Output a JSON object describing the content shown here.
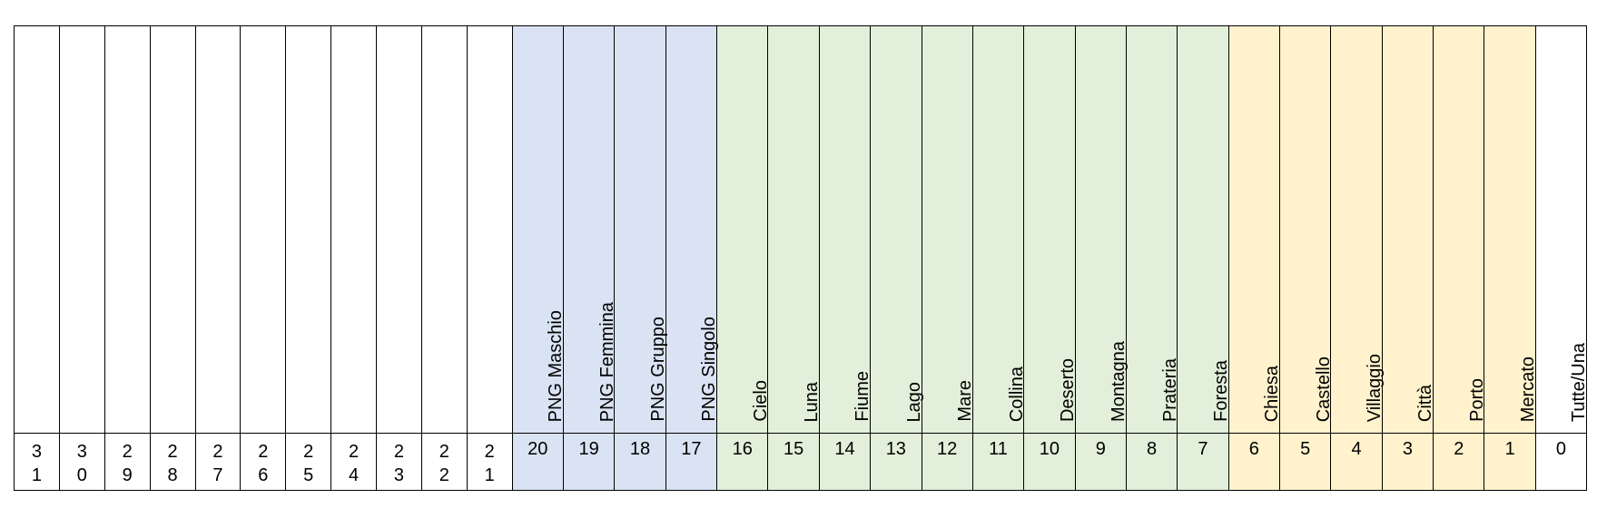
{
  "columns": [
    {
      "number": "31",
      "label": "",
      "color": "white"
    },
    {
      "number": "30",
      "label": "",
      "color": "white"
    },
    {
      "number": "29",
      "label": "",
      "color": "white"
    },
    {
      "number": "28",
      "label": "",
      "color": "white"
    },
    {
      "number": "27",
      "label": "",
      "color": "white"
    },
    {
      "number": "26",
      "label": "",
      "color": "white"
    },
    {
      "number": "25",
      "label": "",
      "color": "white"
    },
    {
      "number": "24",
      "label": "",
      "color": "white"
    },
    {
      "number": "23",
      "label": "",
      "color": "white"
    },
    {
      "number": "22",
      "label": "",
      "color": "white"
    },
    {
      "number": "21",
      "label": "",
      "color": "white"
    },
    {
      "number": "20",
      "label": "PNG Maschio",
      "color": "blue"
    },
    {
      "number": "19",
      "label": "PNG Femmina",
      "color": "blue"
    },
    {
      "number": "18",
      "label": "PNG Gruppo",
      "color": "blue"
    },
    {
      "number": "17",
      "label": "PNG Singolo",
      "color": "blue"
    },
    {
      "number": "16",
      "label": "Cielo",
      "color": "green"
    },
    {
      "number": "15",
      "label": "Luna",
      "color": "green"
    },
    {
      "number": "14",
      "label": "Fiume",
      "color": "green"
    },
    {
      "number": "13",
      "label": "Lago",
      "color": "green"
    },
    {
      "number": "12",
      "label": "Mare",
      "color": "green"
    },
    {
      "number": "11",
      "label": "Collina",
      "color": "green"
    },
    {
      "number": "10",
      "label": "Deserto",
      "color": "green"
    },
    {
      "number": "9",
      "label": "Montagna",
      "color": "green"
    },
    {
      "number": "8",
      "label": "Prateria",
      "color": "green"
    },
    {
      "number": "7",
      "label": "Foresta",
      "color": "green"
    },
    {
      "number": "6",
      "label": "Chiesa",
      "color": "yellow"
    },
    {
      "number": "5",
      "label": "Castello",
      "color": "yellow"
    },
    {
      "number": "4",
      "label": "Villaggio",
      "color": "yellow"
    },
    {
      "number": "3",
      "label": "Città",
      "color": "yellow"
    },
    {
      "number": "2",
      "label": "Porto",
      "color": "yellow"
    },
    {
      "number": "1",
      "label": "Mercato",
      "color": "yellow"
    },
    {
      "number": "0",
      "label": "Tutte/Una",
      "color": "white"
    }
  ],
  "colors": {
    "blue": "#dae3f3",
    "green": "#e2efda",
    "yellow": "#fff2cc",
    "white": "#ffffff"
  }
}
